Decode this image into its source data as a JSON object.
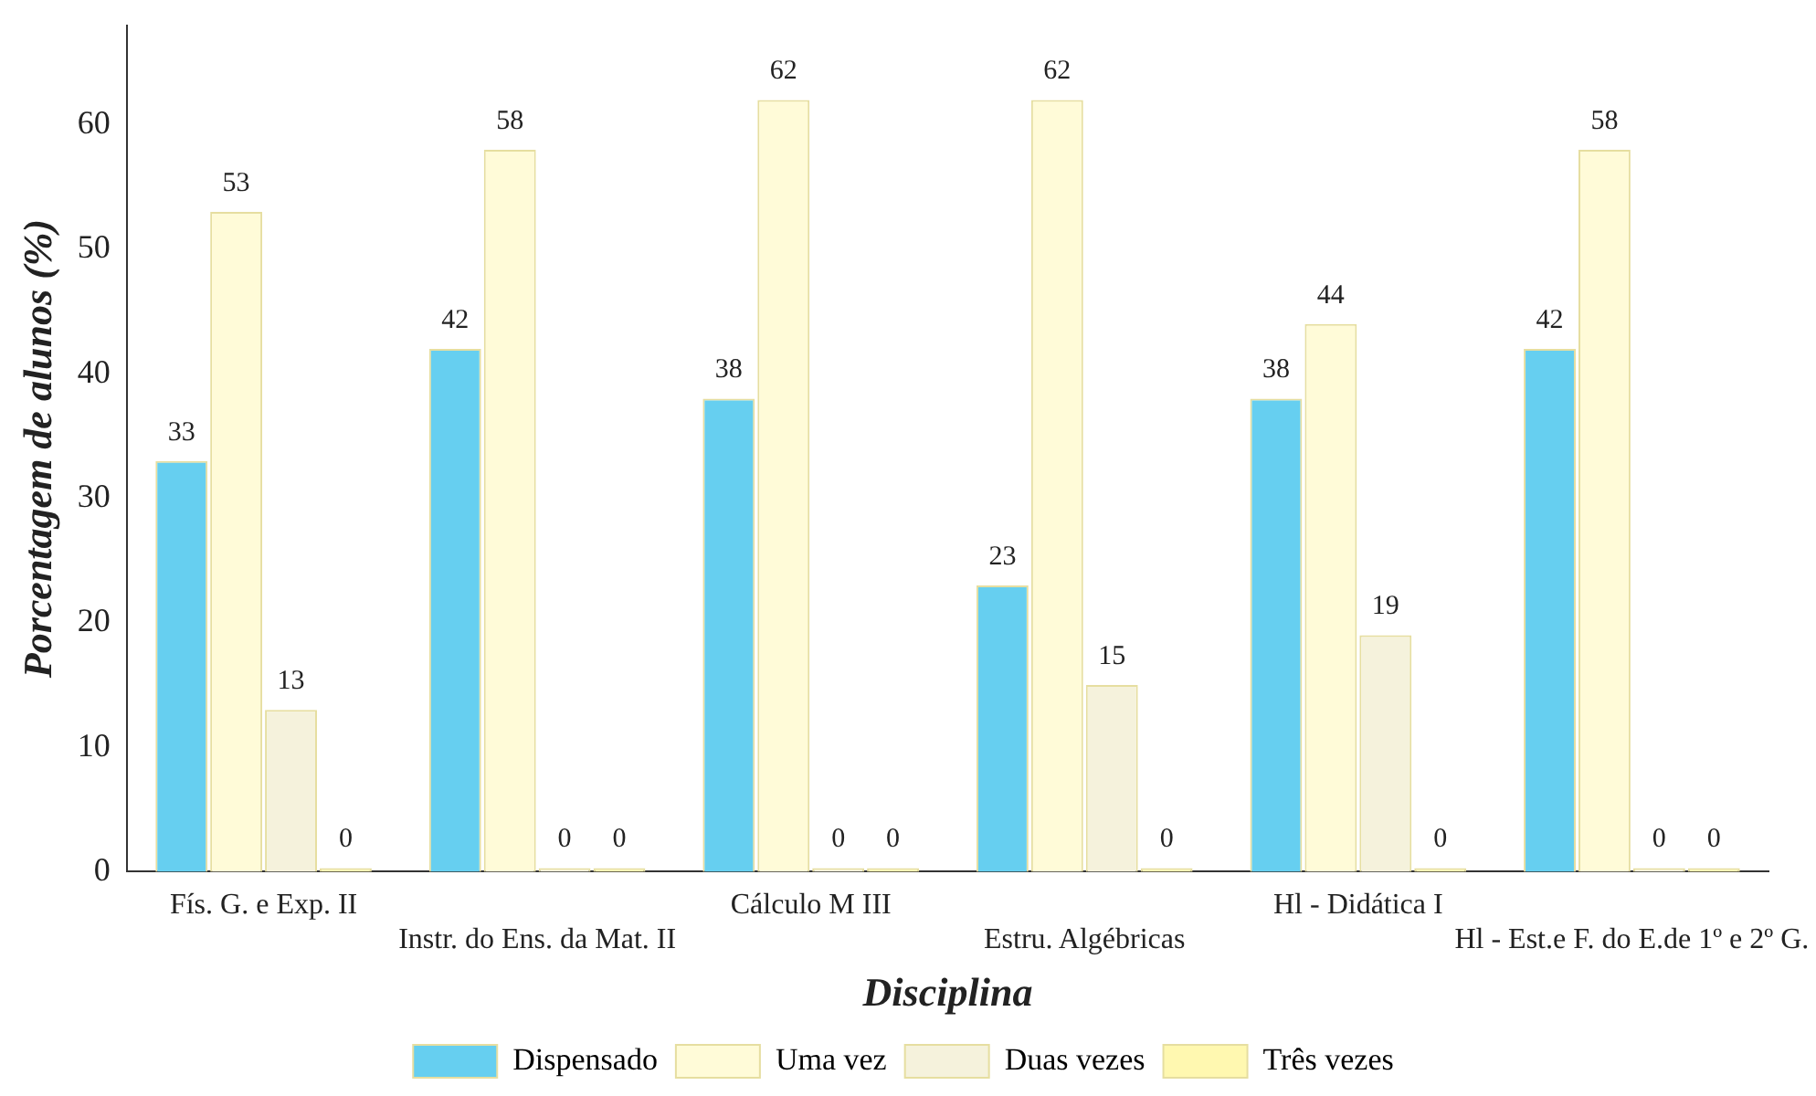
{
  "chart_data": {
    "type": "bar",
    "xlabel": "Disciplina",
    "ylabel": "Porcentagem de alunos (%)",
    "categories": [
      "Fís. G. e Exp. II",
      "Instr. do Ens. da Mat. II",
      "Cálculo M III",
      "Estru. Algébricas",
      "Hl - Didática I",
      "Hl - Est.e F. do E.de 1º e 2º G."
    ],
    "series": [
      {
        "name": "Dispensado",
        "color": "#66cff0",
        "values": [
          33,
          42,
          38,
          23,
          38,
          42
        ]
      },
      {
        "name": "Uma vez",
        "color": "#fffbd8",
        "values": [
          53,
          58,
          62,
          62,
          44,
          58
        ]
      },
      {
        "name": "Duas vezes",
        "color": "#f5f2dc",
        "values": [
          13,
          0,
          0,
          15,
          19,
          0
        ]
      },
      {
        "name": "Três vezes",
        "color": "#fff8b0",
        "values": [
          0,
          0,
          0,
          0,
          0,
          0
        ]
      }
    ],
    "ylim": [
      0,
      68
    ],
    "yticks": [
      0,
      10,
      20,
      30,
      40,
      50,
      60
    ],
    "grid": false,
    "legend": "bottom",
    "data_labels": true
  }
}
